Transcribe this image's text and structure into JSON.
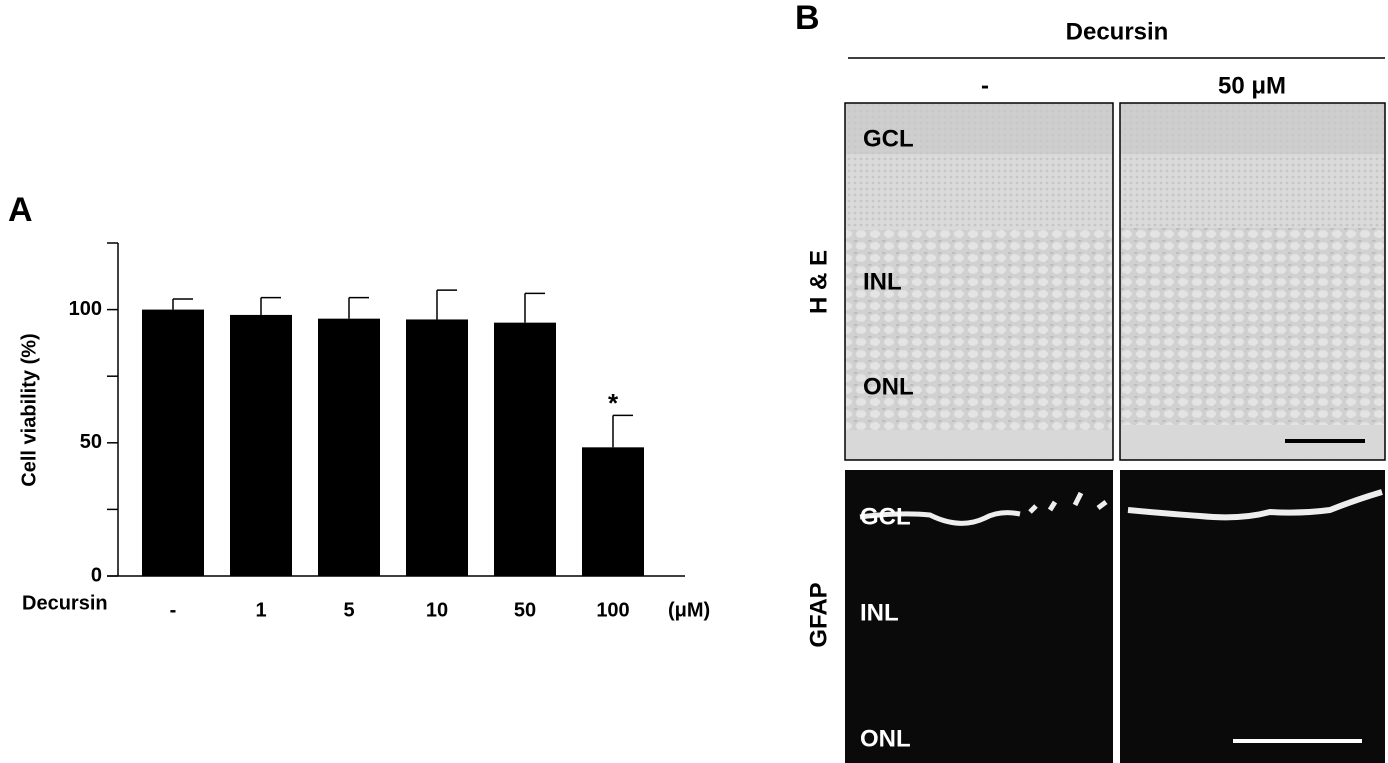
{
  "chart_data": {
    "type": "bar",
    "panel_label": "A",
    "ylabel": "Cell viability (%)",
    "xlabel": "Decursin",
    "x_unit": "(μM)",
    "categories": [
      "-",
      "1",
      "5",
      "10",
      "50",
      "100"
    ],
    "values": [
      100,
      98,
      96.6,
      96.3,
      95.1,
      48.3
    ],
    "errors": [
      4,
      6.5,
      7.9,
      11,
      11,
      12
    ],
    "significance": [
      null,
      null,
      null,
      null,
      null,
      "*"
    ],
    "color": "#000000",
    "ylim": [
      0,
      125
    ],
    "yticks": [
      0,
      50,
      100
    ],
    "minor_yticks": [
      25,
      75,
      125
    ]
  },
  "panel_b": {
    "panel_label": "B",
    "treatment": "Decursin",
    "columns": [
      "-",
      "50 μM"
    ],
    "rows": [
      "H & E",
      "GFAP"
    ],
    "he_layers": [
      "GCL",
      "INL",
      "ONL"
    ],
    "gfap_layers": [
      "GCL",
      "INL",
      "ONL"
    ]
  }
}
